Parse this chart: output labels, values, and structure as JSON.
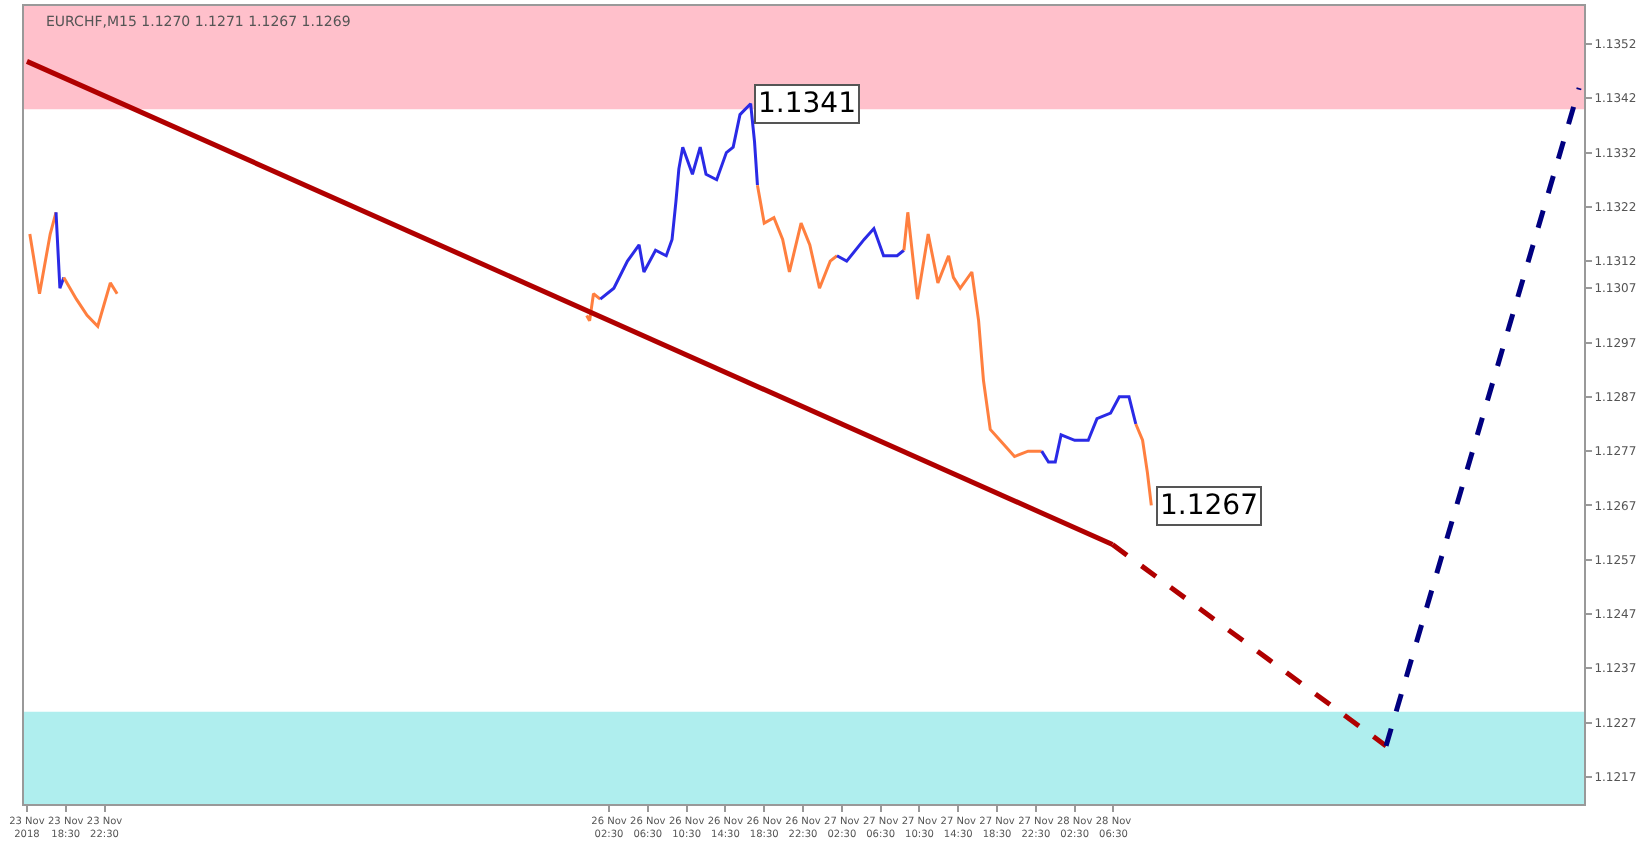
{
  "chart_data": {
    "type": "line",
    "title": "EURCHF,M15 1.1270 1.1271 1.1267 1.1269",
    "xlim": [
      "2018-11-23T14:12",
      "2018-11-30T07:00"
    ],
    "ylim": [
      1.1212,
      1.1359
    ],
    "xticks": [
      {
        "value": "2018-11-23T14:30",
        "label": "23 Nov 2018"
      },
      {
        "value": "2018-11-23T18:30",
        "label": "23 Nov 18:30"
      },
      {
        "value": "2018-11-23T22:30",
        "label": "23 Nov 22:30"
      },
      {
        "value": "2018-11-26T02:30",
        "label": "26 Nov 02:30"
      },
      {
        "value": "2018-11-26T06:30",
        "label": "26 Nov 06:30"
      },
      {
        "value": "2018-11-26T10:30",
        "label": "26 Nov 10:30"
      },
      {
        "value": "2018-11-26T14:30",
        "label": "26 Nov 14:30"
      },
      {
        "value": "2018-11-26T18:30",
        "label": "26 Nov 18:30"
      },
      {
        "value": "2018-11-26T22:30",
        "label": "26 Nov 22:30"
      },
      {
        "value": "2018-11-27T02:30",
        "label": "27 Nov 02:30"
      },
      {
        "value": "2018-11-27T06:30",
        "label": "27 Nov 06:30"
      },
      {
        "value": "2018-11-27T10:30",
        "label": "27 Nov 10:30"
      },
      {
        "value": "2018-11-27T14:30",
        "label": "27 Nov 14:30"
      },
      {
        "value": "2018-11-27T18:30",
        "label": "27 Nov 18:30"
      },
      {
        "value": "2018-11-27T22:30",
        "label": "27 Nov 22:30"
      },
      {
        "value": "2018-11-28T02:30",
        "label": "28 Nov 02:30"
      },
      {
        "value": "2018-11-28T06:30",
        "label": "28 Nov 06:30"
      }
    ],
    "yticks": [
      1.1217,
      1.1227,
      1.1237,
      1.1247,
      1.1257,
      1.1267,
      1.1277,
      1.1287,
      1.1297,
      1.1307,
      1.1312,
      1.1322,
      1.1332,
      1.1342,
      1.1352
    ],
    "grid": false,
    "bands": [
      {
        "axis": "y",
        "from": 1.134,
        "to": 1.1359,
        "color": "#ffc0cb"
      },
      {
        "axis": "y",
        "from": 1.1212,
        "to": 1.1229,
        "color": "#afeeee"
      }
    ],
    "annotations": [
      {
        "text": "1.1341",
        "x": "2018-11-26T17:06",
        "y": 1.1341
      },
      {
        "text": "1.1267",
        "x": "2018-11-28T10:24",
        "y": 1.1267
      }
    ],
    "series": [
      {
        "color": "#ff7f3f",
        "x": [
          "2018-11-23T14:48",
          "2018-11-23T15:48",
          "2018-11-23T16:54",
          "2018-11-23T17:30"
        ],
        "values": [
          1.1317,
          1.1306,
          1.1317,
          1.1321
        ]
      },
      {
        "color": "#2a2ae6",
        "x": [
          "2018-11-23T17:30",
          "2018-11-23T17:54",
          "2018-11-23T18:18"
        ],
        "values": [
          1.1321,
          1.1307,
          1.1309
        ]
      },
      {
        "color": "#ff7f3f",
        "x": [
          "2018-11-23T18:18",
          "2018-11-23T19:36",
          "2018-11-23T20:42",
          "2018-11-23T21:48",
          "2018-11-23T23:06",
          "2018-11-23T23:48",
          "2018-11-25T00:00",
          "2018-11-26T00:12",
          "2018-11-26T00:30",
          "2018-11-26T00:54",
          "2018-11-26T01:36"
        ],
        "values": [
          1.1309,
          1.1305,
          1.1302,
          1.13,
          1.1308,
          1.1306,
          null,
          1.1302,
          1.1301,
          1.1306,
          1.1305
        ]
      },
      {
        "color": "#2a2ae6",
        "x": [
          "2018-11-26T01:36",
          "2018-11-26T03:00",
          "2018-11-26T04:24",
          "2018-11-26T05:36",
          "2018-11-26T06:06",
          "2018-11-26T07:18",
          "2018-11-26T08:24",
          "2018-11-26T09:00",
          "2018-11-26T09:24",
          "2018-11-26T09:42",
          "2018-11-26T10:06",
          "2018-11-26T11:06",
          "2018-11-26T11:54",
          "2018-11-26T12:30",
          "2018-11-26T13:36",
          "2018-11-26T14:36",
          "2018-11-26T15:18",
          "2018-11-26T16:00",
          "2018-11-26T17:06",
          "2018-11-26T17:30",
          "2018-11-26T17:48"
        ],
        "values": [
          1.1305,
          1.1307,
          1.1312,
          1.1315,
          1.131,
          1.1314,
          1.1313,
          1.1316,
          1.1323,
          1.1329,
          1.1333,
          1.1328,
          1.1333,
          1.1328,
          1.1327,
          1.1332,
          1.1333,
          1.1339,
          1.1341,
          1.1334,
          1.1326
        ]
      },
      {
        "color": "#ff7f3f",
        "x": [
          "2018-11-26T17:48",
          "2018-11-26T18:30",
          "2018-11-26T19:30",
          "2018-11-26T20:24",
          "2018-11-26T21:06",
          "2018-11-26T22:18",
          "2018-11-26T23:12",
          "2018-11-27T00:12",
          "2018-11-27T01:18",
          "2018-11-27T02:00"
        ],
        "values": [
          1.1326,
          1.1319,
          1.132,
          1.1316,
          1.131,
          1.1319,
          1.1315,
          1.1307,
          1.1312,
          1.1313
        ]
      },
      {
        "color": "#2a2ae6",
        "x": [
          "2018-11-27T02:00",
          "2018-11-27T03:00",
          "2018-11-27T04:48",
          "2018-11-27T05:48",
          "2018-11-27T06:48",
          "2018-11-27T08:12",
          "2018-11-27T08:54"
        ],
        "values": [
          1.1313,
          1.1312,
          1.1316,
          1.1318,
          1.1313,
          1.1313,
          1.1314
        ]
      },
      {
        "color": "#ff7f3f",
        "x": [
          "2018-11-27T08:54",
          "2018-11-27T09:18",
          "2018-11-27T10:18",
          "2018-11-27T11:24",
          "2018-11-27T12:24",
          "2018-11-27T13:30",
          "2018-11-27T14:00",
          "2018-11-27T14:42",
          "2018-11-27T15:54",
          "2018-11-27T16:36",
          "2018-11-27T17:06",
          "2018-11-27T17:48",
          "2018-11-27T18:48",
          "2018-11-27T20:18",
          "2018-11-27T21:42",
          "2018-11-27T23:06"
        ],
        "values": [
          1.1314,
          1.1321,
          1.1305,
          1.1317,
          1.1308,
          1.1313,
          1.1309,
          1.1307,
          1.131,
          1.1301,
          1.129,
          1.1281,
          1.1279,
          1.1276,
          1.1277,
          1.1277
        ]
      },
      {
        "color": "#2a2ae6",
        "x": [
          "2018-11-27T23:06",
          "2018-11-27T23:48",
          "2018-11-28T00:30",
          "2018-11-28T01:06",
          "2018-11-28T02:30",
          "2018-11-28T03:54",
          "2018-11-28T04:48",
          "2018-11-28T06:12",
          "2018-11-28T07:06",
          "2018-11-28T08:06",
          "2018-11-28T08:48"
        ],
        "values": [
          1.1277,
          1.1275,
          1.1275,
          1.128,
          1.1279,
          1.1279,
          1.1283,
          1.1284,
          1.1287,
          1.1287,
          1.1282
        ]
      },
      {
        "color": "#ff7f3f",
        "x": [
          "2018-11-28T08:48",
          "2018-11-28T09:30",
          "2018-11-28T10:00",
          "2018-11-28T10:24"
        ],
        "values": [
          1.1282,
          1.1279,
          1.1273,
          1.1267
        ]
      },
      {
        "color": "#b00000",
        "x": [
          "2018-11-23T14:30",
          "2018-11-28T06:24"
        ],
        "values": [
          1.13488,
          1.12598
        ],
        "line_style": "solid"
      },
      {
        "color": "#b00000",
        "x": [
          "2018-11-28T06:24",
          "2018-11-29T10:36"
        ],
        "values": [
          1.12598,
          1.12227
        ],
        "line_style": "dashed"
      },
      {
        "color": "#000080",
        "x": [
          "2018-11-29T10:36",
          "2018-11-30T06:30"
        ],
        "values": [
          1.12227,
          1.13439
        ],
        "line_style": "dashed"
      }
    ]
  }
}
